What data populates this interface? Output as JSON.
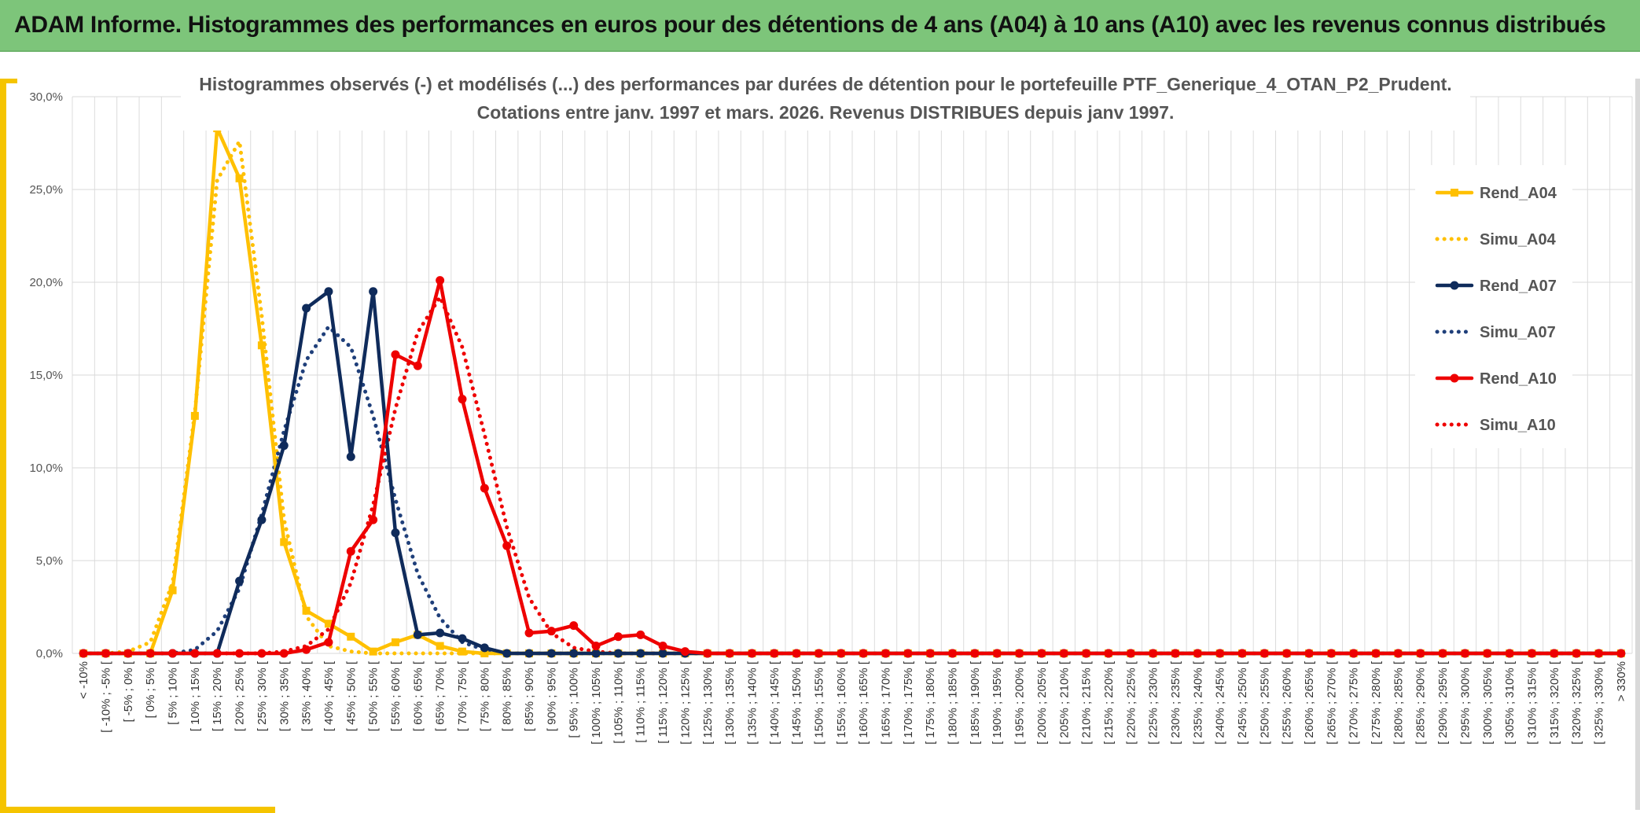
{
  "header": {
    "title": "ADAM Informe. Histogrammes des performances en euros pour des détentions de 4 ans (A04) à 10 ans (A10) avec les revenus connus distribués"
  },
  "chart_data": {
    "type": "line",
    "title": "Histogrammes observés (-) et modélisés (...) des performances par durées de détention pour le portefeuille PTF_Generique_4_OTAN_P2_Prudent.",
    "subtitle": "Cotations entre janv. 1997 et mars. 2026. Revenus DISTRIBUES depuis janv 1997.",
    "xlabel": "",
    "ylabel": "",
    "ylim": [
      0,
      30
    ],
    "yticks": [
      "0,0%",
      "5,0%",
      "10,0%",
      "15,0%",
      "20,0%",
      "25,0%",
      "30,0%"
    ],
    "grid": true,
    "legend_position": "right",
    "categories": [
      "< -10%",
      "[ -10% ; -5% [",
      "[ -5% ; 0% [",
      "[ 0% ; 5% [",
      "[ 5% ; 10% [",
      "[ 10% ; 15% [",
      "[ 15% ; 20% [",
      "[ 20% ; 25% [",
      "[ 25% ; 30% [",
      "[ 30% ; 35% [",
      "[ 35% ; 40% [",
      "[ 40% ; 45% [",
      "[ 45% ; 50% [",
      "[ 50% ; 55% [",
      "[ 55% ; 60% [",
      "[ 60% ; 65% [",
      "[ 65% ; 70% [",
      "[ 70% ; 75% [",
      "[ 75% ; 80% [",
      "[ 80% ; 85% [",
      "[ 85% ; 90% [",
      "[ 90% ; 95% [",
      "[ 95% ; 100% [",
      "[ 100% ; 105% [",
      "[ 105% ; 110% [",
      "[ 110% ; 115% [",
      "[ 115% ; 120% [",
      "[ 120% ; 125% [",
      "[ 125% ; 130% [",
      "[ 130% ; 135% [",
      "[ 135% ; 140% [",
      "[ 140% ; 145% [",
      "[ 145% ; 150% [",
      "[ 150% ; 155% [",
      "[ 155% ; 160% [",
      "[ 160% ; 165% [",
      "[ 165% ; 170% [",
      "[ 170% ; 175% [",
      "[ 175% ; 180% [",
      "[ 180% ; 185% [",
      "[ 185% ; 190% [",
      "[ 190% ; 195% [",
      "[ 195% ; 200% [",
      "[ 200% ; 205% [",
      "[ 205% ; 210% [",
      "[ 210% ; 215% [",
      "[ 215% ; 220% [",
      "[ 220% ; 225% [",
      "[ 225% ; 230% [",
      "[ 230% ; 235% [",
      "[ 235% ; 240% [",
      "[ 240% ; 245% [",
      "[ 245% ; 250% [",
      "[ 250% ; 255% [",
      "[ 255% ; 260% [",
      "[ 260% ; 265% [",
      "[ 265% ; 270% [",
      "[ 270% ; 275% [",
      "[ 275% ; 280% [",
      "[ 280% ; 285% [",
      "[ 285% ; 290% [",
      "[ 290% ; 295% [",
      "[ 295% ; 300% [",
      "[ 300% ; 305% [",
      "[ 305% ; 310% [",
      "[ 310% ; 315% [",
      "[ 315% ; 320% [",
      "[ 320% ; 325% [",
      "[ 325% ; 330% [",
      "> 330%"
    ],
    "series": [
      {
        "name": "Rend_A04",
        "style": "solid",
        "marker": "square",
        "color": "#ffc000",
        "values": [
          0,
          0,
          0,
          0,
          3.4,
          12.8,
          28.3,
          25.6,
          16.6,
          6.0,
          2.3,
          1.6,
          0.9,
          0.1,
          0.6,
          1.0,
          0.4,
          0.1,
          0,
          0,
          0,
          0,
          0,
          0,
          0,
          0,
          0,
          0,
          0,
          0,
          0,
          0,
          0,
          0,
          0,
          0,
          0,
          0,
          0,
          0,
          0,
          0,
          0,
          0,
          0,
          0,
          0,
          0,
          0,
          0,
          0,
          0,
          0,
          0,
          0,
          0,
          0,
          0,
          0,
          0,
          0,
          0,
          0,
          0,
          0,
          0,
          0,
          0,
          0,
          0
        ]
      },
      {
        "name": "Simu_A04",
        "style": "dotted",
        "marker": "none",
        "color": "#ffc000",
        "values": [
          0,
          0,
          0.1,
          0.6,
          3.8,
          13.0,
          25.5,
          27.6,
          18.2,
          7.2,
          2.0,
          0.4,
          0.1,
          0,
          0,
          0,
          0,
          0,
          0,
          0,
          0,
          0,
          0,
          0,
          0,
          0,
          0,
          0,
          0,
          0,
          0,
          0,
          0,
          0,
          0,
          0,
          0,
          0,
          0,
          0,
          0,
          0,
          0,
          0,
          0,
          0,
          0,
          0,
          0,
          0,
          0,
          0,
          0,
          0,
          0,
          0,
          0,
          0,
          0,
          0,
          0,
          0,
          0,
          0,
          0,
          0,
          0,
          0,
          0,
          0
        ]
      },
      {
        "name": "Rend_A07",
        "style": "solid",
        "marker": "circle",
        "color": "#0f2b5b",
        "values": [
          0,
          0,
          0,
          0,
          0,
          0,
          0,
          3.9,
          7.2,
          11.2,
          18.6,
          19.5,
          10.6,
          19.5,
          6.5,
          1.0,
          1.1,
          0.8,
          0.3,
          0,
          0,
          0,
          0,
          0,
          0,
          0,
          0,
          0,
          0,
          0,
          0,
          0,
          0,
          0,
          0,
          0,
          0,
          0,
          0,
          0,
          0,
          0,
          0,
          0,
          0,
          0,
          0,
          0,
          0,
          0,
          0,
          0,
          0,
          0,
          0,
          0,
          0,
          0,
          0,
          0,
          0,
          0,
          0,
          0,
          0,
          0,
          0,
          0,
          0,
          0
        ]
      },
      {
        "name": "Simu_A07",
        "style": "dotted",
        "marker": "none",
        "color": "#1f3f7a",
        "values": [
          0,
          0,
          0,
          0,
          0,
          0.2,
          1.2,
          3.5,
          7.5,
          12.0,
          15.8,
          17.6,
          16.5,
          12.8,
          8.3,
          4.3,
          1.9,
          0.6,
          0.2,
          0,
          0,
          0,
          0,
          0,
          0,
          0,
          0,
          0,
          0,
          0,
          0,
          0,
          0,
          0,
          0,
          0,
          0,
          0,
          0,
          0,
          0,
          0,
          0,
          0,
          0,
          0,
          0,
          0,
          0,
          0,
          0,
          0,
          0,
          0,
          0,
          0,
          0,
          0,
          0,
          0,
          0,
          0,
          0,
          0,
          0,
          0,
          0,
          0,
          0,
          0
        ]
      },
      {
        "name": "Rend_A10",
        "style": "solid",
        "marker": "circle",
        "color": "#ee0000",
        "values": [
          0,
          0,
          0,
          0,
          0,
          0,
          0,
          0,
          0,
          0,
          0.2,
          0.6,
          5.5,
          7.2,
          16.1,
          15.5,
          20.1,
          13.7,
          8.9,
          5.8,
          1.1,
          1.2,
          1.5,
          0.4,
          0.9,
          1.0,
          0.4,
          0.1,
          0,
          0,
          0,
          0,
          0,
          0,
          0,
          0,
          0,
          0,
          0,
          0,
          0,
          0,
          0,
          0,
          0,
          0,
          0,
          0,
          0,
          0,
          0,
          0,
          0,
          0,
          0,
          0,
          0,
          0,
          0,
          0,
          0,
          0,
          0,
          0,
          0,
          0,
          0,
          0,
          0,
          0
        ]
      },
      {
        "name": "Simu_A10",
        "style": "dotted",
        "marker": "none",
        "color": "#ee0000",
        "values": [
          0,
          0,
          0,
          0,
          0,
          0,
          0,
          0,
          0,
          0.1,
          0.4,
          1.3,
          3.8,
          8.0,
          13.2,
          17.3,
          19.2,
          16.5,
          11.8,
          6.8,
          3.0,
          1.1,
          0.3,
          0.1,
          0,
          0,
          0,
          0,
          0,
          0,
          0,
          0,
          0,
          0,
          0,
          0,
          0,
          0,
          0,
          0,
          0,
          0,
          0,
          0,
          0,
          0,
          0,
          0,
          0,
          0,
          0,
          0,
          0,
          0,
          0,
          0,
          0,
          0,
          0,
          0,
          0,
          0,
          0,
          0,
          0,
          0,
          0,
          0,
          0,
          0
        ]
      }
    ]
  }
}
